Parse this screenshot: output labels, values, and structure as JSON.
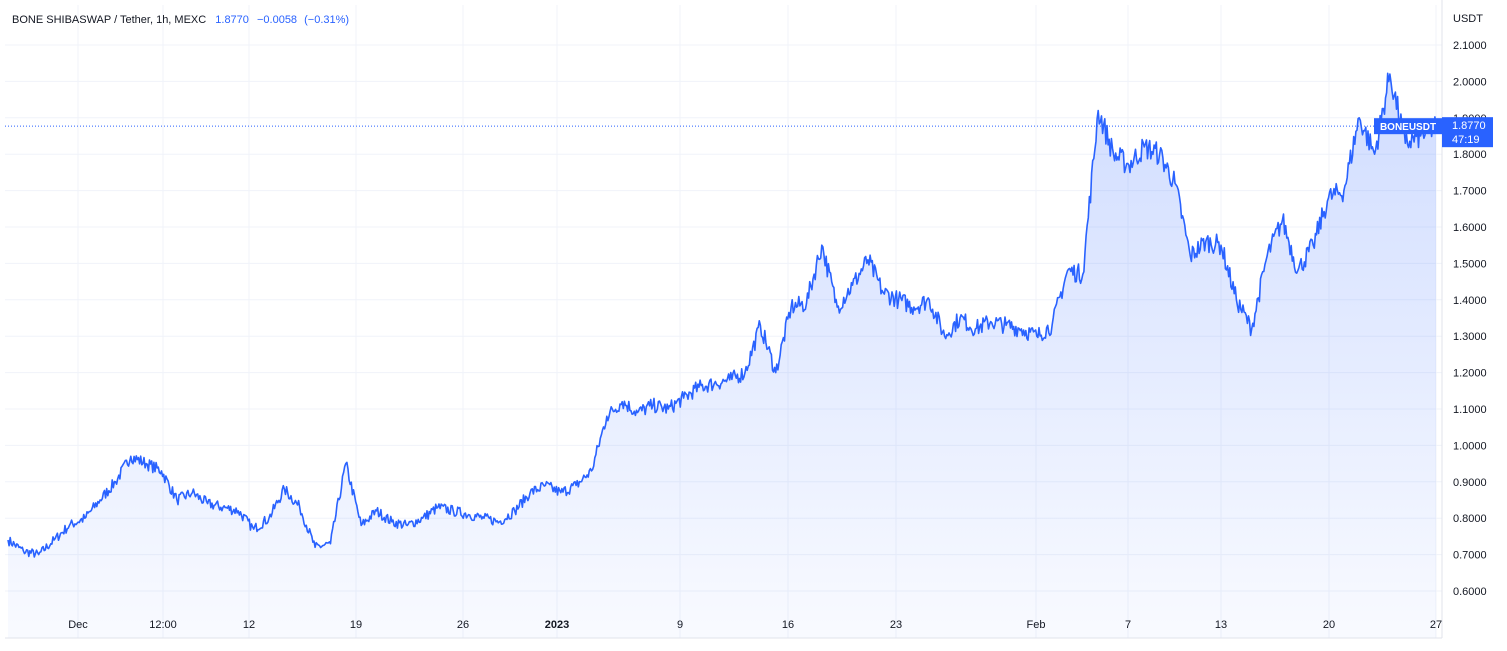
{
  "header": {
    "symbol": "BONE SHIBASWAP / Tether, 1h, MEXC",
    "last": "1.8770",
    "change": "−0.0058",
    "change_pct": "(−0.31%)"
  },
  "axis": {
    "currency": "USDT"
  },
  "price_tag": {
    "ticker": "BONEUSDT",
    "price": "1.8770",
    "countdown": "47:19"
  },
  "colors": {
    "line": "#2962ff",
    "text_blue": "#2962ff",
    "grid": "#f0f3fa",
    "axis_text": "#131722",
    "tag_bg": "#2962ff"
  },
  "chart_data": {
    "type": "area",
    "x_tick_labels": [
      "Dec",
      "12:00",
      "12",
      "19",
      "26",
      "2023",
      "9",
      "16",
      "23",
      "Feb",
      "7",
      "13",
      "20",
      "27"
    ],
    "y_ticks": [
      0.6,
      0.7,
      0.8,
      0.9,
      1.0,
      1.1,
      1.2,
      1.3,
      1.4,
      1.5,
      1.6,
      1.7,
      1.8,
      1.9,
      2.0,
      2.1
    ],
    "y_tick_labels": [
      "0.6000",
      "0.7000",
      "0.8000",
      "0.9000",
      "1.0000",
      "1.1000",
      "1.2000",
      "1.3000",
      "1.4000",
      "1.5000",
      "1.6000",
      "1.7000",
      "1.8000",
      "1.9000",
      "2.0000",
      "2.1000"
    ],
    "ylim": [
      0.55,
      2.15
    ],
    "last_price": 1.877,
    "series": [
      {
        "points": [
          [
            "2022-11-26",
            0.74
          ],
          [
            "2022-11-27",
            0.71
          ],
          [
            "2022-11-28",
            0.7
          ],
          [
            "2022-11-29",
            0.74
          ],
          [
            "2022-11-30",
            0.78
          ],
          [
            "2022-12-01",
            0.8
          ],
          [
            "2022-12-02",
            0.85
          ],
          [
            "2022-12-03",
            0.9
          ],
          [
            "2022-12-04",
            0.97
          ],
          [
            "2022-12-05",
            0.95
          ],
          [
            "2022-12-06",
            0.93
          ],
          [
            "2022-12-07",
            0.85
          ],
          [
            "2022-12-08",
            0.87
          ],
          [
            "2022-12-09",
            0.84
          ],
          [
            "2022-12-10",
            0.83
          ],
          [
            "2022-12-11",
            0.82
          ],
          [
            "2022-12-12",
            0.77
          ],
          [
            "2022-12-13",
            0.8
          ],
          [
            "2022-12-14",
            0.88
          ],
          [
            "2022-12-15",
            0.83
          ],
          [
            "2022-12-16",
            0.72
          ],
          [
            "2022-12-17",
            0.73
          ],
          [
            "2022-12-18",
            0.95
          ],
          [
            "2022-12-19",
            0.78
          ],
          [
            "2022-12-20",
            0.82
          ],
          [
            "2022-12-21",
            0.79
          ],
          [
            "2022-12-22",
            0.78
          ],
          [
            "2022-12-23",
            0.8
          ],
          [
            "2022-12-24",
            0.83
          ],
          [
            "2022-12-25",
            0.82
          ],
          [
            "2022-12-26",
            0.81
          ],
          [
            "2022-12-27",
            0.8
          ],
          [
            "2022-12-28",
            0.79
          ],
          [
            "2022-12-29",
            0.82
          ],
          [
            "2022-12-30",
            0.87
          ],
          [
            "2022-12-31",
            0.89
          ],
          [
            "2023-01-01",
            0.87
          ],
          [
            "2023-01-02",
            0.89
          ],
          [
            "2023-01-03",
            0.93
          ],
          [
            "2023-01-04",
            1.08
          ],
          [
            "2023-01-05",
            1.12
          ],
          [
            "2023-01-06",
            1.09
          ],
          [
            "2023-01-07",
            1.11
          ],
          [
            "2023-01-08",
            1.1
          ],
          [
            "2023-01-09",
            1.13
          ],
          [
            "2023-01-10",
            1.16
          ],
          [
            "2023-01-11",
            1.17
          ],
          [
            "2023-01-12",
            1.18
          ],
          [
            "2023-01-13",
            1.2
          ],
          [
            "2023-01-14",
            1.33
          ],
          [
            "2023-01-15",
            1.2
          ],
          [
            "2023-01-16",
            1.38
          ],
          [
            "2023-01-17",
            1.39
          ],
          [
            "2023-01-18",
            1.55
          ],
          [
            "2023-01-19",
            1.38
          ],
          [
            "2023-01-20",
            1.44
          ],
          [
            "2023-01-21",
            1.51
          ],
          [
            "2023-01-22",
            1.42
          ],
          [
            "2023-01-23",
            1.4
          ],
          [
            "2023-01-24",
            1.38
          ],
          [
            "2023-01-25",
            1.4
          ],
          [
            "2023-01-26",
            1.3
          ],
          [
            "2023-01-27",
            1.35
          ],
          [
            "2023-01-28",
            1.32
          ],
          [
            "2023-01-29",
            1.34
          ],
          [
            "2023-01-30",
            1.33
          ],
          [
            "2023-01-31",
            1.32
          ],
          [
            "2023-02-01",
            1.3
          ],
          [
            "2023-02-02",
            1.33
          ],
          [
            "2023-02-03",
            1.48
          ],
          [
            "2023-02-04",
            1.47
          ],
          [
            "2023-02-05",
            1.92
          ],
          [
            "2023-02-06",
            1.8
          ],
          [
            "2023-02-07",
            1.77
          ],
          [
            "2023-02-08",
            1.82
          ],
          [
            "2023-02-09",
            1.8
          ],
          [
            "2023-02-10",
            1.72
          ],
          [
            "2023-02-11",
            1.52
          ],
          [
            "2023-02-12",
            1.56
          ],
          [
            "2023-02-13",
            1.55
          ],
          [
            "2023-02-14",
            1.4
          ],
          [
            "2023-02-15",
            1.32
          ],
          [
            "2023-02-16",
            1.52
          ],
          [
            "2023-02-17",
            1.62
          ],
          [
            "2023-02-18",
            1.48
          ],
          [
            "2023-02-19",
            1.55
          ],
          [
            "2023-02-20",
            1.68
          ],
          [
            "2023-02-21",
            1.7
          ],
          [
            "2023-02-22",
            1.9
          ],
          [
            "2023-02-23",
            1.8
          ],
          [
            "2023-02-24",
            2.02
          ],
          [
            "2023-02-25",
            1.83
          ],
          [
            "2023-02-26",
            1.85
          ],
          [
            "2023-02-27",
            1.877
          ]
        ]
      }
    ]
  }
}
